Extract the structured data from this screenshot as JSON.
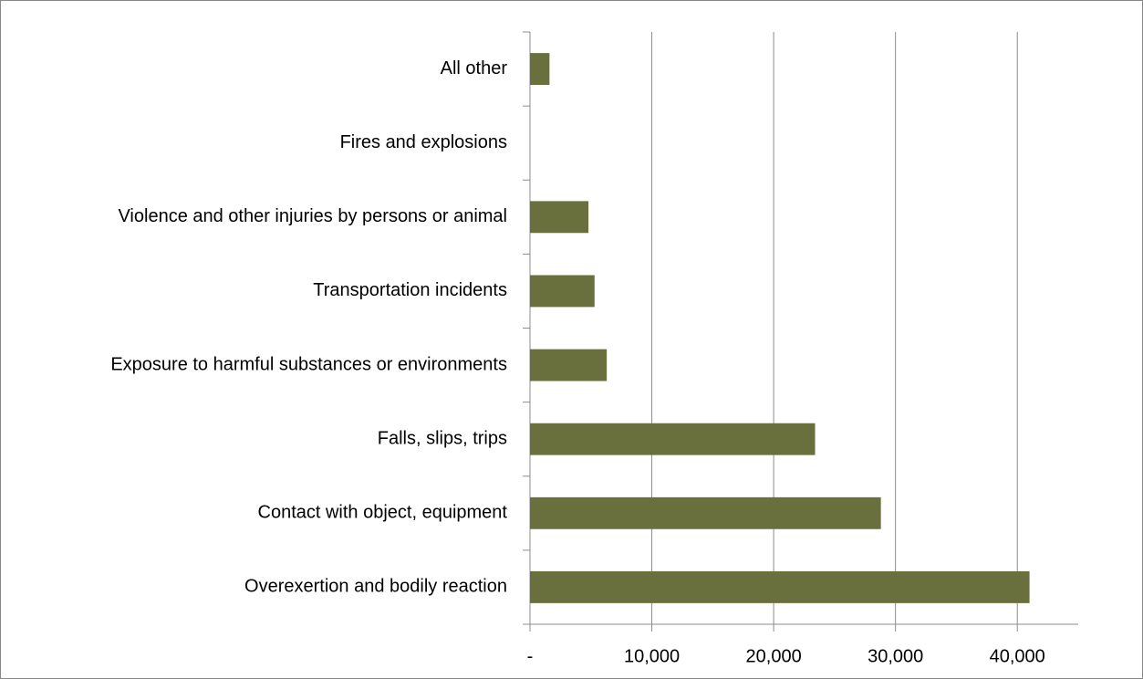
{
  "chart_data": {
    "type": "bar",
    "orientation": "horizontal",
    "categories": [
      "Overexertion and bodily reaction",
      "Contact with object, equipment",
      "Falls, slips, trips",
      "Exposure to harmful substances or environments",
      "Transportation incidents",
      "Violence and other injuries by persons or animal",
      "Fires and explosions",
      "All other"
    ],
    "values": [
      41000,
      28800,
      23400,
      6300,
      5300,
      4800,
      0,
      1600
    ],
    "color": "#6a703d",
    "xlim": [
      0,
      45000
    ],
    "xticks": [
      {
        "value": 0,
        "label": "-"
      },
      {
        "value": 10000,
        "label": "10,000"
      },
      {
        "value": 20000,
        "label": "20,000"
      },
      {
        "value": 30000,
        "label": "30,000"
      },
      {
        "value": 40000,
        "label": "40,000"
      }
    ],
    "grid": true
  }
}
